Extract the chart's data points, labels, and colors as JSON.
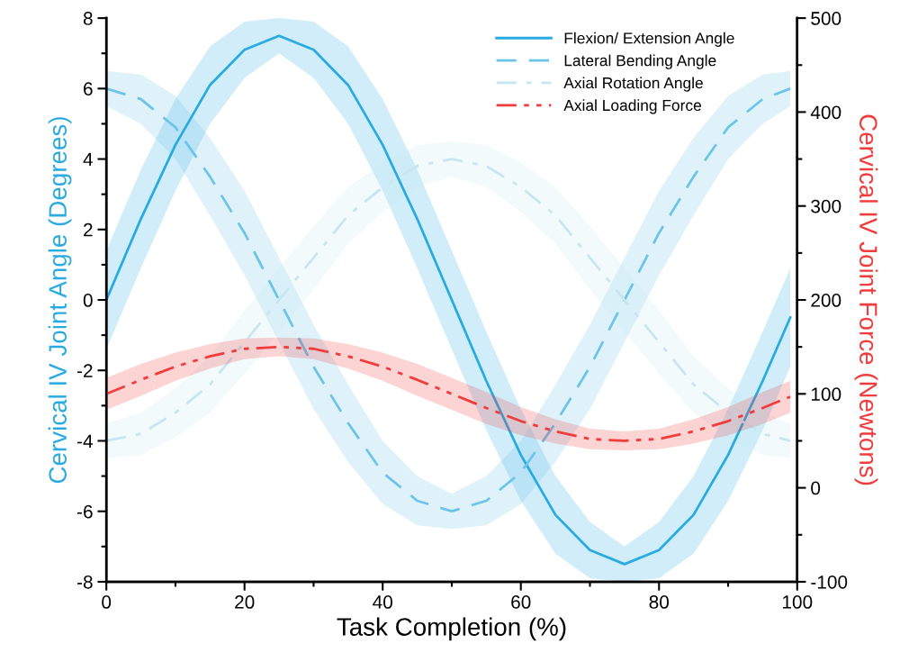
{
  "chart_data": {
    "type": "line",
    "xlabel": "Task Completion (%)",
    "ylabel": "Cervical IV Joint Angle (Degrees)",
    "y2label": "Cervical IV Joint Force (Newtons)",
    "x": [
      0,
      5,
      10,
      15,
      20,
      25,
      30,
      35,
      40,
      45,
      50,
      55,
      60,
      65,
      70,
      75,
      80,
      85,
      90,
      95,
      99
    ],
    "xlim": [
      0,
      100
    ],
    "xticks": [
      0,
      20,
      40,
      60,
      80,
      100
    ],
    "ylim": [
      -8,
      8
    ],
    "yticks": [
      -8,
      -6,
      -4,
      -2,
      0,
      2,
      4,
      6,
      8
    ],
    "y2lim": [
      -100,
      500
    ],
    "y2ticks": [
      -100,
      0,
      100,
      200,
      300,
      400,
      500
    ],
    "grid": false,
    "legend": "top right",
    "series": [
      {
        "name": "Flexion/ Extension Angle",
        "color": "#29abe2",
        "line_style": "solid",
        "values": [
          0,
          2.3,
          4.4,
          6.1,
          7.1,
          7.5,
          7.1,
          6.1,
          4.4,
          2.3,
          0,
          -2.3,
          -4.4,
          -6.1,
          -7.1,
          -7.5,
          -7.1,
          -6.1,
          -4.4,
          -2.3,
          -0.5
        ],
        "lower": [
          -1.4,
          0.9,
          3.1,
          5.0,
          6.3,
          7.0,
          6.3,
          5.0,
          3.1,
          0.9,
          -1.4,
          -3.7,
          -5.7,
          -7.2,
          -7.9,
          -8.0,
          -7.9,
          -7.2,
          -5.7,
          -3.7,
          -1.9
        ],
        "upper": [
          1.4,
          3.7,
          5.7,
          7.2,
          7.9,
          8.0,
          7.9,
          7.2,
          5.7,
          3.7,
          1.4,
          -0.9,
          -3.1,
          -5.0,
          -6.3,
          -7.0,
          -6.3,
          -5.0,
          -3.1,
          -0.9,
          0.9
        ]
      },
      {
        "name": "Lateral Bending Angle",
        "color": "#6cc5e8",
        "line_style": "dashed",
        "values": [
          6,
          5.7,
          4.9,
          3.5,
          1.9,
          0,
          -1.9,
          -3.5,
          -4.9,
          -5.7,
          -6,
          -5.7,
          -4.9,
          -3.5,
          -1.9,
          0,
          1.9,
          3.5,
          4.9,
          5.7,
          6.0
        ],
        "lower": [
          5.5,
          5.0,
          4.0,
          2.4,
          0.7,
          -1.2,
          -3.1,
          -4.6,
          -5.8,
          -6.4,
          -6.5,
          -6.4,
          -5.8,
          -4.6,
          -3.1,
          -1.2,
          0.7,
          2.4,
          4.0,
          5.0,
          5.5
        ],
        "upper": [
          6.5,
          6.4,
          5.8,
          4.6,
          3.1,
          1.2,
          -0.7,
          -2.4,
          -4.0,
          -5.0,
          -5.5,
          -5.0,
          -4.0,
          -2.4,
          -0.7,
          1.2,
          3.1,
          4.6,
          5.8,
          6.4,
          6.5
        ]
      },
      {
        "name": "Axial Rotation Angle",
        "color": "#c5e6f2",
        "line_style": "dashdot",
        "values": [
          -4,
          -3.8,
          -3.2,
          -2.4,
          -1.2,
          0,
          1.2,
          2.4,
          3.2,
          3.8,
          4,
          3.8,
          3.2,
          2.4,
          1.2,
          0,
          -1.2,
          -2.4,
          -3.2,
          -3.8,
          -4.0
        ],
        "lower": [
          -4.5,
          -4.4,
          -3.9,
          -3.2,
          -2.1,
          -0.9,
          0.3,
          1.6,
          2.5,
          3.2,
          3.5,
          3.2,
          2.5,
          1.6,
          0.3,
          -0.9,
          -2.1,
          -3.2,
          -3.9,
          -4.4,
          -4.5
        ],
        "upper": [
          -3.5,
          -3.2,
          -2.5,
          -1.6,
          -0.3,
          0.9,
          2.1,
          3.2,
          3.9,
          4.4,
          4.5,
          4.4,
          3.9,
          3.2,
          2.1,
          0.9,
          -0.3,
          -1.6,
          -2.5,
          -3.2,
          -3.5
        ]
      },
      {
        "name": "Axial Loading Force",
        "color": "#f03c3c",
        "line_style": "dashdotdot",
        "axis": "y2",
        "values": [
          100,
          115,
          129,
          140,
          148,
          150,
          148,
          140,
          129,
          115,
          100,
          85,
          71,
          60,
          52,
          50,
          52,
          60,
          71,
          85,
          97
        ],
        "lower": [
          83,
          98,
          114,
          127,
          137,
          140,
          137,
          127,
          114,
          98,
          83,
          68,
          56,
          47,
          41,
          40,
          41,
          47,
          56,
          68,
          80
        ],
        "upper": [
          117,
          132,
          144,
          153,
          159,
          160,
          159,
          153,
          144,
          132,
          117,
          102,
          86,
          73,
          63,
          60,
          63,
          73,
          86,
          102,
          114
        ]
      }
    ]
  }
}
